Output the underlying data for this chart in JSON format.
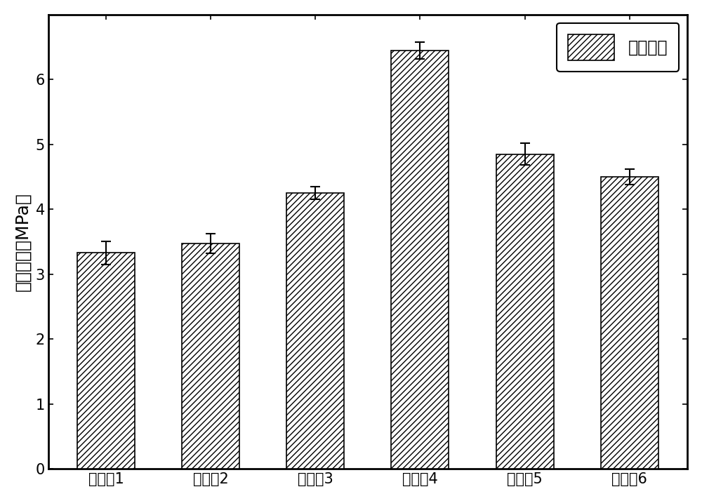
{
  "categories": [
    "实施例1",
    "实施例2",
    "实施例3",
    "实施例4",
    "实施例5",
    "实施例6"
  ],
  "values": [
    3.33,
    3.47,
    4.25,
    6.45,
    4.85,
    4.5
  ],
  "errors": [
    0.18,
    0.15,
    0.1,
    0.13,
    0.17,
    0.12
  ],
  "ylabel": "拉伸强度（MPa）",
  "ylim": [
    0,
    7.0
  ],
  "yticks": [
    0,
    1,
    2,
    3,
    4,
    5,
    6
  ],
  "bar_color": "white",
  "bar_edgecolor": "black",
  "hatch": "////",
  "legend_label": "拉伸强度",
  "bar_width": 0.55,
  "figsize": [
    10.0,
    7.14
  ],
  "dpi": 100,
  "figure_facecolor": "white",
  "axis_facecolor": "white",
  "label_fontsize": 18,
  "tick_fontsize": 15,
  "legend_fontsize": 17,
  "capsize": 5,
  "elinewidth": 1.5,
  "ecapthick": 1.5,
  "spine_linewidth": 2.0
}
